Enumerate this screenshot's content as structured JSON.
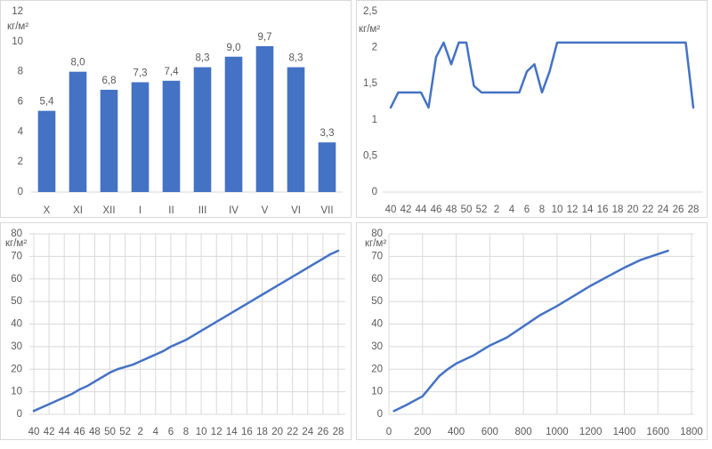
{
  "chart_data": [
    {
      "type": "bar",
      "y_label": "кг/м²",
      "color": "#4472c4",
      "grid": false,
      "categories": [
        "X",
        "XI",
        "XII",
        "I",
        "II",
        "III",
        "IV",
        "V",
        "VI",
        "VII"
      ],
      "values": [
        5.4,
        8.0,
        6.8,
        7.3,
        7.4,
        8.3,
        9.0,
        9.7,
        8.3,
        3.3
      ],
      "value_labels": [
        "5,4",
        "8,0",
        "6,8",
        "7,3",
        "7,4",
        "8,3",
        "9,0",
        "9,7",
        "8,3",
        "3,3"
      ],
      "ylim": [
        0,
        12
      ],
      "yticks": [
        0,
        2,
        4,
        6,
        8,
        10,
        12
      ]
    },
    {
      "type": "line",
      "y_label": "кг/м²",
      "color": "#4472c4",
      "grid": false,
      "categories": [
        "40",
        null,
        "42",
        null,
        "44",
        null,
        "46",
        null,
        "48",
        null,
        "50",
        null,
        "52",
        null,
        "2",
        null,
        "4",
        null,
        "6",
        null,
        "8",
        null,
        "10",
        null,
        "12",
        null,
        "14",
        null,
        "16",
        null,
        "18",
        null,
        "20",
        null,
        "22",
        null,
        "24",
        null,
        "26",
        null,
        "28"
      ],
      "values": [
        1.17,
        1.38,
        1.38,
        1.38,
        1.38,
        1.17,
        1.87,
        2.07,
        1.77,
        2.07,
        2.07,
        1.47,
        1.38,
        1.38,
        1.38,
        1.38,
        1.38,
        1.38,
        1.67,
        1.77,
        1.38,
        1.67,
        2.07,
        2.07,
        2.07,
        2.07,
        2.07,
        2.07,
        2.07,
        2.07,
        2.07,
        2.07,
        2.07,
        2.07,
        2.07,
        2.07,
        2.07,
        2.07,
        2.07,
        2.07,
        1.17
      ],
      "ylim": [
        0,
        2.5
      ],
      "yticks": [
        0,
        {
          "value": 0.5,
          "label": "0,5"
        },
        1,
        {
          "value": 1.5,
          "label": "1,5"
        },
        2,
        {
          "value": 2.5,
          "label": "2,5"
        }
      ]
    },
    {
      "type": "line",
      "y_label": "кг/м²",
      "color": "#4472c4",
      "grid": true,
      "categories": [
        "40",
        null,
        "42",
        null,
        "44",
        null,
        "46",
        null,
        "48",
        null,
        "50",
        null,
        "52",
        null,
        "2",
        null,
        "4",
        null,
        "6",
        null,
        "8",
        null,
        "10",
        null,
        "12",
        null,
        "14",
        null,
        "16",
        null,
        "18",
        null,
        "20",
        null,
        "22",
        null,
        "24",
        null,
        "26",
        null,
        "28"
      ],
      "values": [
        1.5,
        3,
        4.5,
        6,
        7.5,
        9,
        11,
        12.5,
        14.5,
        16.5,
        18.5,
        20,
        21,
        22,
        23.5,
        25,
        26.5,
        28,
        30,
        31.5,
        33,
        35,
        37,
        39,
        41,
        43,
        45,
        47,
        49,
        51,
        53,
        55,
        57,
        59,
        61,
        63,
        65,
        67,
        69,
        71,
        72.5
      ],
      "ylim": [
        0,
        80
      ],
      "yticks": [
        0,
        10,
        20,
        30,
        40,
        50,
        60,
        70,
        80
      ]
    },
    {
      "type": "line",
      "y_label": "кг/м²",
      "color": "#4472c4",
      "grid": true,
      "x": [
        30,
        100,
        200,
        250,
        300,
        350,
        400,
        500,
        600,
        700,
        800,
        900,
        1000,
        1100,
        1200,
        1300,
        1400,
        1500,
        1600,
        1660
      ],
      "values": [
        1.5,
        4,
        8,
        12.5,
        17,
        20,
        22.5,
        26,
        30.5,
        34,
        39,
        44,
        48,
        52.5,
        57,
        61,
        65,
        68.5,
        71,
        72.5
      ],
      "xlim": [
        0,
        1800
      ],
      "xticks": [
        0,
        200,
        400,
        600,
        800,
        1000,
        1200,
        1400,
        1600,
        1800
      ],
      "ylim": [
        0,
        80
      ],
      "yticks": [
        0,
        10,
        20,
        30,
        40,
        50,
        60,
        70,
        80
      ]
    }
  ]
}
